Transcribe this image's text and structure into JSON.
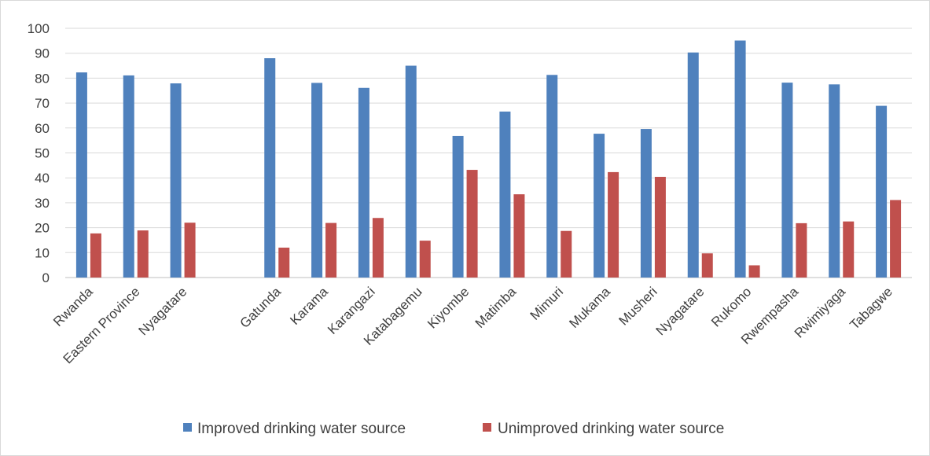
{
  "chart_data": {
    "type": "bar",
    "categories": [
      "Rwanda",
      "Eastern Province",
      "Nyagatare",
      "",
      "Gatunda",
      "Karama",
      "Karangazi",
      "Katabagemu",
      "Kiyombe",
      "Matimba",
      "Mimuri",
      "Mukama",
      "Musheri",
      "Nyagatare",
      "Rukomo",
      "Rwempasha",
      "Rwimiyaga",
      "Tabagwe"
    ],
    "series": [
      {
        "name": "Improved drinking water source",
        "color": "#4f81bd",
        "values": [
          82.3,
          81.1,
          77.9,
          null,
          88.0,
          78.1,
          76.1,
          85.0,
          56.8,
          66.6,
          81.3,
          57.7,
          59.6,
          90.3,
          95.1,
          78.2,
          77.5,
          68.9
        ]
      },
      {
        "name": "Unimproved drinking water source",
        "color": "#c0504d",
        "values": [
          17.7,
          18.9,
          22.0,
          null,
          12.0,
          21.9,
          23.9,
          14.8,
          43.2,
          33.4,
          18.7,
          42.3,
          40.4,
          9.7,
          4.9,
          21.8,
          22.5,
          31.1
        ]
      }
    ],
    "ylim": [
      0,
      100
    ],
    "yticks": [
      0,
      10,
      20,
      30,
      40,
      50,
      60,
      70,
      80,
      90,
      100
    ],
    "grid": true,
    "legend": "bottom",
    "title": "",
    "xlabel": "",
    "ylabel": ""
  }
}
